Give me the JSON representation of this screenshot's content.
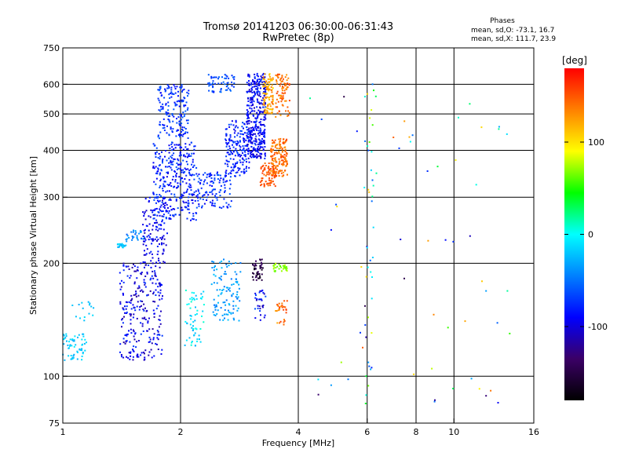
{
  "header": {
    "title_line1": "Tromsø 20141203 06:30:00-06:31:43",
    "title_line2": "RwPretec (8p)"
  },
  "phases": {
    "title": "Phases",
    "o_line": "mean, sd,O: -73.1, 16.7",
    "x_line": "mean, sd,X: 111.7, 23.9"
  },
  "colorbar": {
    "unit": "[deg]",
    "ticks": [
      {
        "label": "100",
        "value": 100
      },
      {
        "label": "0",
        "value": 0
      },
      {
        "label": "-100",
        "value": -100
      }
    ],
    "range": [
      -180,
      180
    ],
    "colors": [
      "#000000",
      "#3b0066",
      "#0000ff",
      "#0080ff",
      "#00ffff",
      "#00ff00",
      "#ffff00",
      "#ff8000",
      "#ff0000"
    ]
  },
  "chart_data": {
    "type": "scatter",
    "title": "Tromsø 20141203 06:30:00-06:31:43",
    "subtitle": "RwPretec (8p)",
    "xlabel": "Frequency [MHz]",
    "ylabel": "Stationary phase Virtual Height [km]",
    "x_scale": "log",
    "y_scale": "log",
    "xlim": [
      1,
      16
    ],
    "ylim": [
      75,
      750
    ],
    "x_ticks": [
      {
        "label": "1",
        "value": 1
      },
      {
        "label": "2",
        "value": 2
      },
      {
        "label": "4",
        "value": 4
      },
      {
        "label": "6",
        "value": 6
      },
      {
        "label": "8",
        "value": 8
      },
      {
        "label": "10",
        "value": 10
      },
      {
        "label": "16",
        "value": 16
      }
    ],
    "y_ticks": [
      {
        "label": "750",
        "value": 750
      },
      {
        "label": "600",
        "value": 600
      },
      {
        "label": "500",
        "value": 500
      },
      {
        "label": "400",
        "value": 400
      },
      {
        "label": "300",
        "value": 300
      },
      {
        "label": "200",
        "value": 200
      },
      {
        "label": "100",
        "value": 100
      },
      {
        "label": "75",
        "value": 75
      }
    ],
    "grid": true,
    "grid_x": [
      2,
      4,
      6,
      8,
      10
    ],
    "grid_y": [
      100,
      200,
      300,
      400,
      500,
      600
    ],
    "color_scale": {
      "label": "[deg]",
      "range": [
        -180,
        180
      ]
    },
    "clusters": [
      {
        "freq": [
          1.0,
          1.15
        ],
        "height": [
          110,
          130
        ],
        "phase": [
          -30,
          -5
        ],
        "count": 60
      },
      {
        "freq": [
          1.05,
          1.2
        ],
        "height": [
          140,
          160
        ],
        "phase": [
          -30,
          -10
        ],
        "count": 15
      },
      {
        "freq": [
          1.38,
          1.45
        ],
        "height": [
          220,
          226
        ],
        "phase": [
          -30,
          -10
        ],
        "count": 25
      },
      {
        "freq": [
          1.45,
          1.62
        ],
        "height": [
          228,
          245
        ],
        "phase": [
          -60,
          -30
        ],
        "count": 30
      },
      {
        "freq": [
          1.4,
          1.8
        ],
        "height": [
          110,
          200
        ],
        "phase": [
          -120,
          -70
        ],
        "count": 260
      },
      {
        "freq": [
          1.6,
          1.85
        ],
        "height": [
          200,
          300
        ],
        "phase": [
          -110,
          -75
        ],
        "count": 120
      },
      {
        "freq": [
          1.7,
          2.2
        ],
        "height": [
          260,
          420
        ],
        "phase": [
          -100,
          -60
        ],
        "count": 330
      },
      {
        "freq": [
          1.75,
          2.1
        ],
        "height": [
          430,
          600
        ],
        "phase": [
          -90,
          -55
        ],
        "count": 170
      },
      {
        "freq": [
          2.35,
          2.75
        ],
        "height": [
          570,
          640
        ],
        "phase": [
          -80,
          -50
        ],
        "count": 60
      },
      {
        "freq": [
          2.2,
          2.7
        ],
        "height": [
          280,
          350
        ],
        "phase": [
          -95,
          -55
        ],
        "count": 120
      },
      {
        "freq": [
          2.6,
          3.0
        ],
        "height": [
          340,
          480
        ],
        "phase": [
          -100,
          -60
        ],
        "count": 180
      },
      {
        "freq": [
          2.95,
          3.3
        ],
        "height": [
          380,
          640
        ],
        "phase": [
          -110,
          -70
        ],
        "count": 380
      },
      {
        "freq": [
          3.25,
          3.45
        ],
        "height": [
          500,
          640
        ],
        "phase": [
          100,
          140
        ],
        "count": 100
      },
      {
        "freq": [
          3.2,
          3.5
        ],
        "height": [
          320,
          370
        ],
        "phase": [
          140,
          165
        ],
        "count": 70
      },
      {
        "freq": [
          3.4,
          3.75
        ],
        "height": [
          340,
          430
        ],
        "phase": [
          125,
          160
        ],
        "count": 160
      },
      {
        "freq": [
          3.5,
          3.8
        ],
        "height": [
          490,
          640
        ],
        "phase": [
          125,
          160
        ],
        "count": 80
      },
      {
        "freq": [
          2.4,
          2.85
        ],
        "height": [
          140,
          205
        ],
        "phase": [
          -50,
          -20
        ],
        "count": 110
      },
      {
        "freq": [
          2.05,
          2.3
        ],
        "height": [
          120,
          170
        ],
        "phase": [
          -30,
          10
        ],
        "count": 60
      },
      {
        "freq": [
          3.05,
          3.25
        ],
        "height": [
          180,
          205
        ],
        "phase": [
          -170,
          -130
        ],
        "count": 45
      },
      {
        "freq": [
          3.1,
          3.3
        ],
        "height": [
          140,
          170
        ],
        "phase": [
          -120,
          -60
        ],
        "count": 30
      },
      {
        "freq": [
          3.45,
          3.75
        ],
        "height": [
          190,
          200
        ],
        "phase": [
          55,
          80
        ],
        "count": 30
      },
      {
        "freq": [
          3.5,
          3.75
        ],
        "height": [
          135,
          160
        ],
        "phase": [
          120,
          160
        ],
        "count": 30
      },
      {
        "freq": [
          5.9,
          6.25
        ],
        "height": [
          80,
          640
        ],
        "phase": [
          -120,
          120
        ],
        "count": 40
      },
      {
        "freq": [
          4.0,
          14.0
        ],
        "height": [
          80,
          640
        ],
        "phase": [
          -150,
          150
        ],
        "count": 60
      }
    ]
  }
}
